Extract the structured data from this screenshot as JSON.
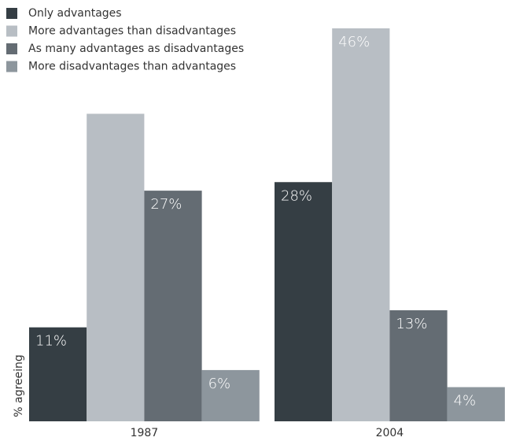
{
  "chart_data": {
    "type": "bar",
    "y_label": "% agreeing",
    "categories": [
      "1987",
      "2004"
    ],
    "series": [
      {
        "name": "Only advantages",
        "color": "#353e44",
        "values": [
          11,
          28
        ],
        "value_labels": [
          "11%",
          "28%"
        ]
      },
      {
        "name": "More advantages than disadvantages",
        "color": "#b8bec4",
        "values": [
          36,
          46
        ],
        "value_labels": [
          null,
          "46%"
        ]
      },
      {
        "name": "As many advantages as disadvantages",
        "color": "#646c73",
        "values": [
          27,
          13
        ],
        "value_labels": [
          "27%",
          "13%"
        ]
      },
      {
        "name": "More disadvantages than advantages",
        "color": "#8d969d",
        "values": [
          6,
          4
        ],
        "value_labels": [
          "6%",
          "4%"
        ]
      }
    ],
    "ylim": [
      0,
      46
    ],
    "legend": "top-left"
  }
}
